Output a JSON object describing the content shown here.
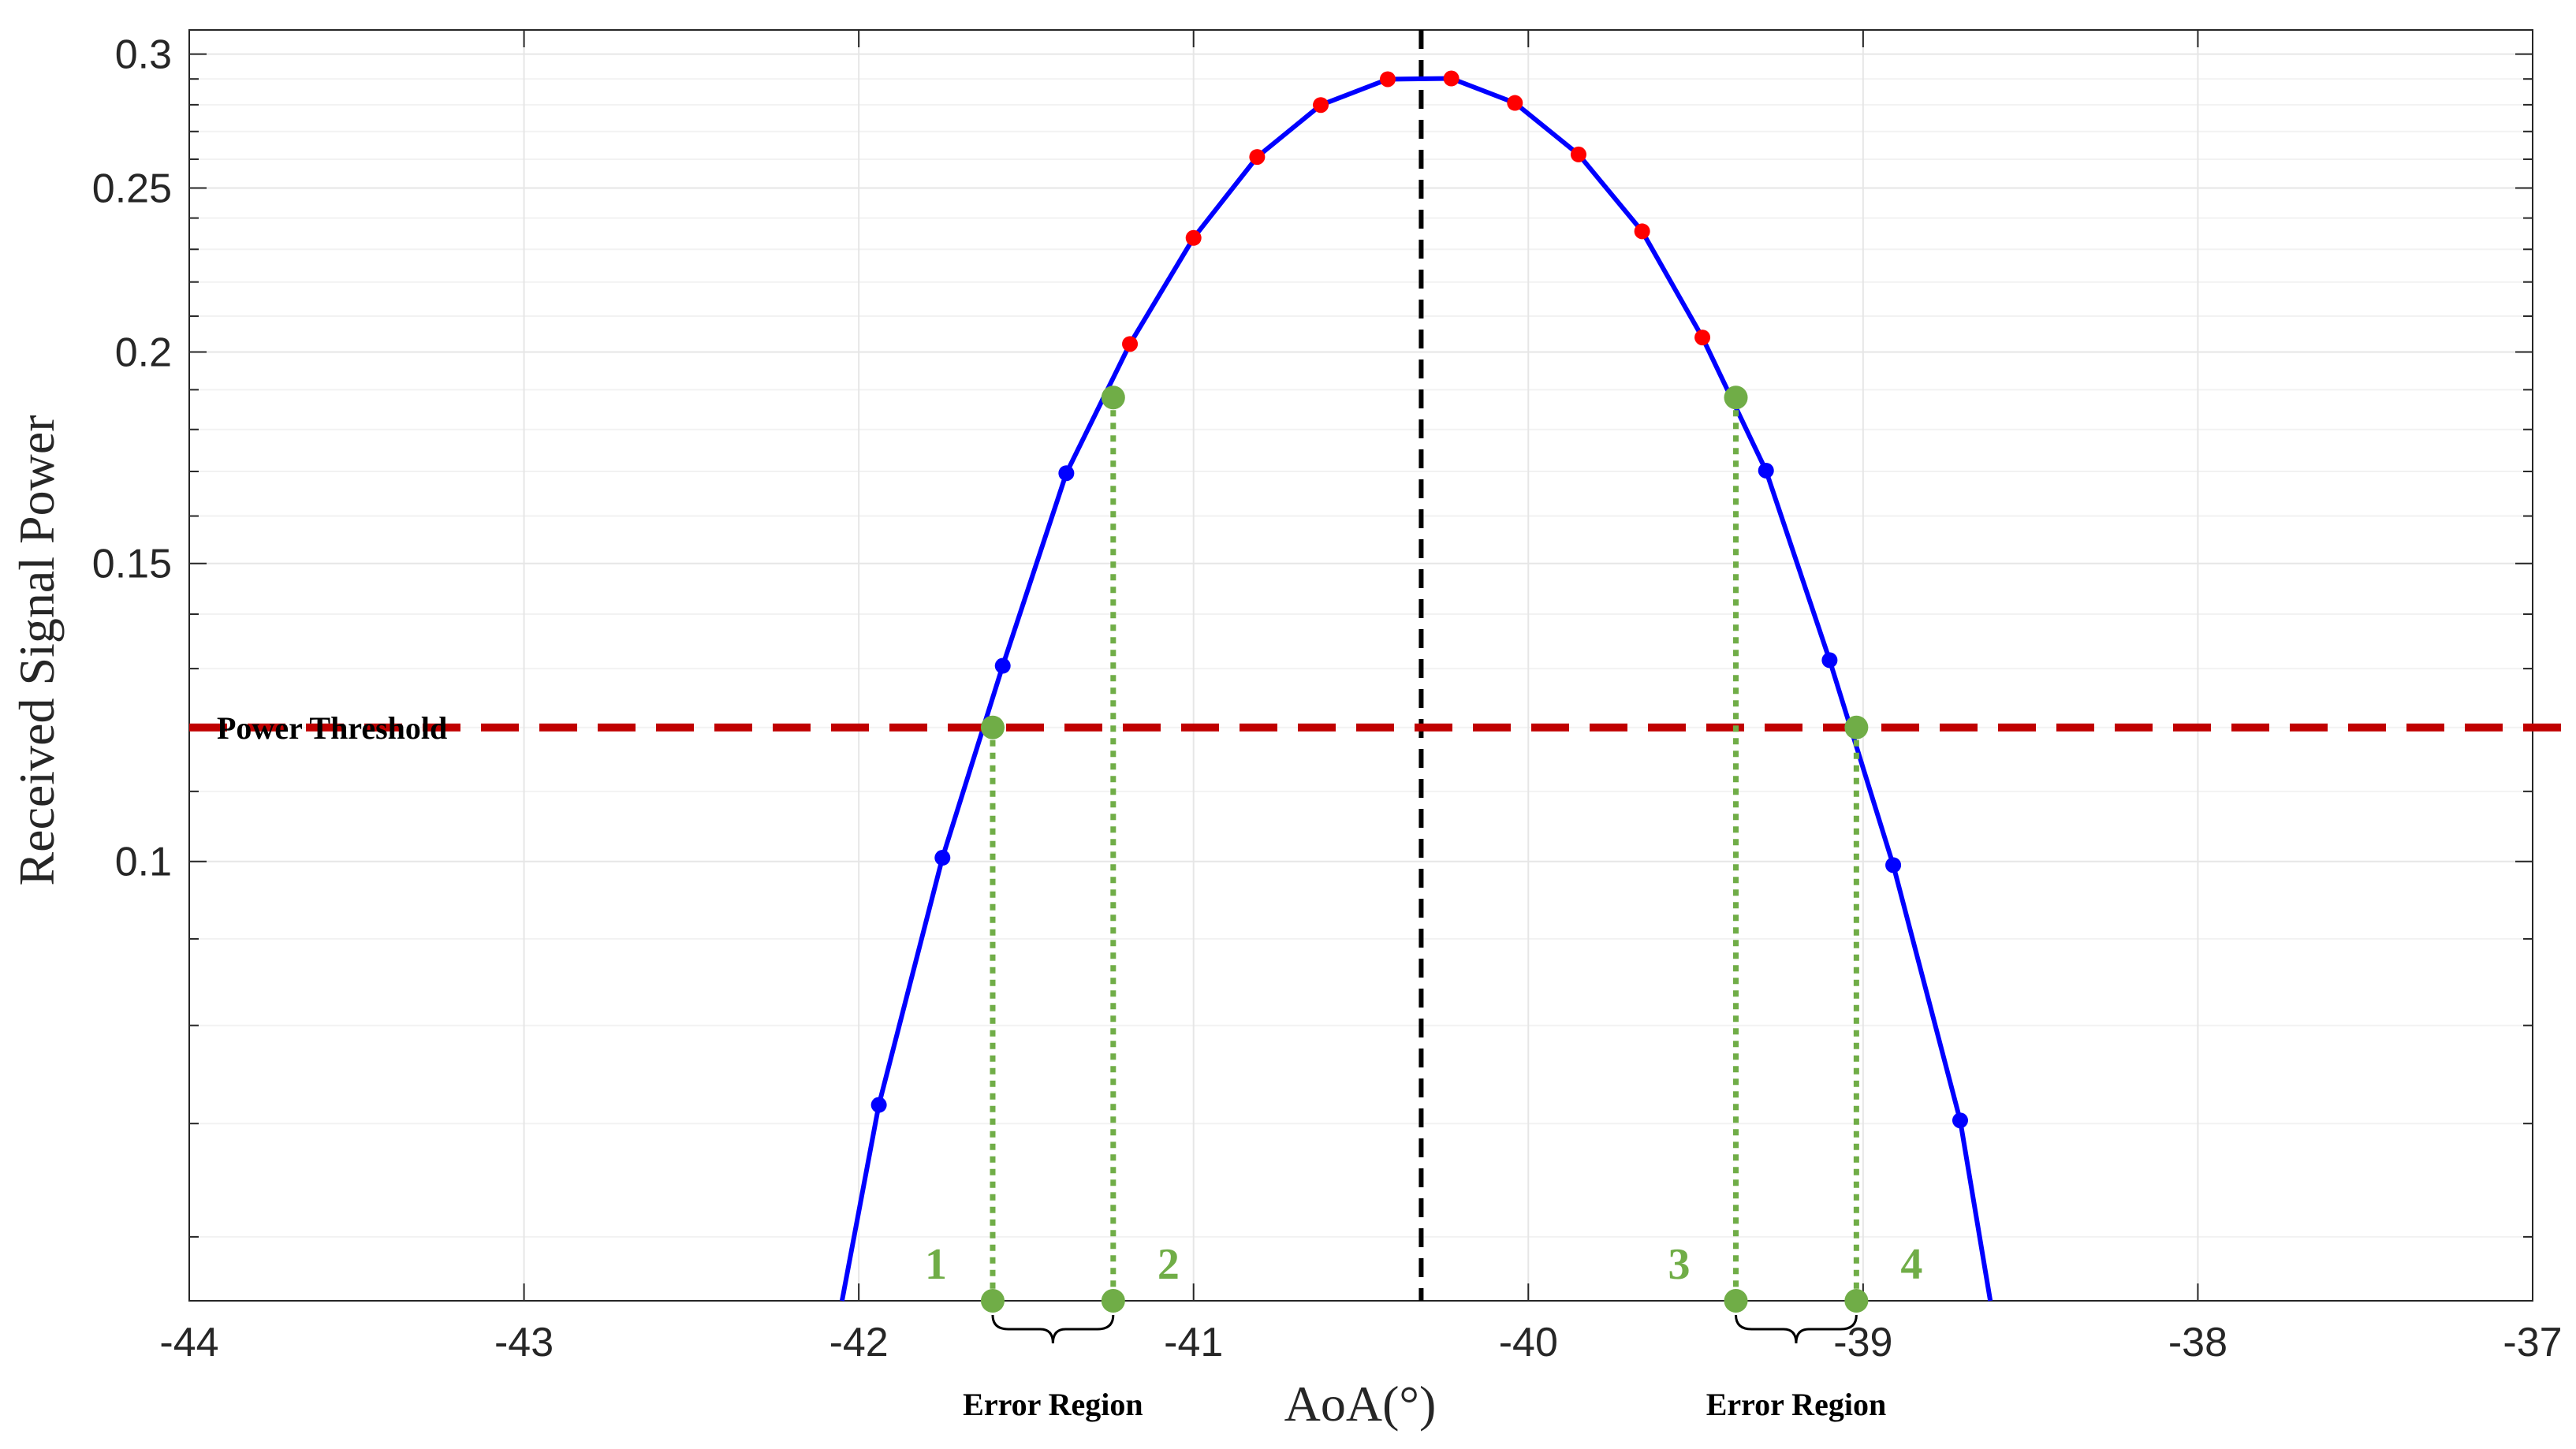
{
  "chart_data": {
    "type": "line",
    "title": "",
    "xlabel": "AoA(°)",
    "ylabel": "Received Signal Power",
    "xlim": [
      -44,
      -37
    ],
    "ylim": [
      0.055,
      0.31
    ],
    "yscale": "log",
    "grid": true,
    "x_ticks": [
      "-44",
      "-43",
      "-42",
      "-41",
      "-40",
      "-39",
      "-38",
      "-37"
    ],
    "y_ticks": [
      "0.1",
      "0.15",
      "0.2",
      "0.25",
      "0.3"
    ],
    "y_tick_values": [
      0.1,
      0.15,
      0.2,
      0.25,
      0.3
    ],
    "y_minor_ticks": [
      0.06,
      0.07,
      0.08,
      0.09,
      0.11,
      0.12,
      0.13,
      0.14,
      0.16,
      0.17,
      0.18,
      0.19,
      0.21,
      0.22,
      0.23,
      0.24,
      0.26,
      0.27,
      0.28,
      0.29
    ],
    "colors": {
      "curve": "#0000ff",
      "above_threshold_points": "#ff0000",
      "below_threshold_points": "#0000ff",
      "threshold_line": "#c00000",
      "center_line": "#000000",
      "markers": "#70ad47",
      "grid": "#e6e6e6"
    },
    "curve": {
      "x": [
        -42.05,
        -41.94,
        -41.75,
        -41.57,
        -41.38,
        -41.19,
        -41.0,
        -40.81,
        -40.62,
        -40.42,
        -40.23,
        -40.04,
        -39.85,
        -39.66,
        -39.48,
        -39.29,
        -39.1,
        -38.91,
        -38.71,
        -38.62
      ],
      "y": [
        0.055,
        0.0718,
        0.1005,
        0.1305,
        0.1696,
        0.2022,
        0.2336,
        0.2608,
        0.2799,
        0.2899,
        0.2902,
        0.2807,
        0.2617,
        0.2357,
        0.204,
        0.1702,
        0.1315,
        0.0995,
        0.0703,
        0.055
      ]
    },
    "points_blue": {
      "x": [
        -41.94,
        -41.75,
        -41.57,
        -41.38,
        -39.29,
        -39.1,
        -38.91,
        -38.71
      ],
      "y": [
        0.0718,
        0.1005,
        0.1305,
        0.1696,
        0.1702,
        0.1315,
        0.0995,
        0.0703
      ]
    },
    "points_red": {
      "x": [
        -41.19,
        -41.0,
        -40.81,
        -40.62,
        -40.42,
        -40.23,
        -40.04,
        -39.85,
        -39.66,
        -39.48
      ],
      "y": [
        0.2022,
        0.2336,
        0.2608,
        0.2799,
        0.2899,
        0.2902,
        0.2807,
        0.2617,
        0.2357,
        0.204
      ]
    },
    "center_line_x": -40.32,
    "threshold": {
      "y": 0.12,
      "label": "Power Threshold"
    },
    "markers": [
      {
        "label": "1",
        "x": -41.6,
        "y": 0.12
      },
      {
        "label": "2",
        "x": -41.24,
        "y": 0.188
      },
      {
        "label": "3",
        "x": -39.38,
        "y": 0.188
      },
      {
        "label": "4",
        "x": -39.02,
        "y": 0.12
      }
    ],
    "error_regions": [
      {
        "label": "Error Region",
        "x_from": -41.6,
        "x_to": -41.24
      },
      {
        "label": "Error Region",
        "x_from": -39.38,
        "x_to": -39.02
      }
    ]
  }
}
